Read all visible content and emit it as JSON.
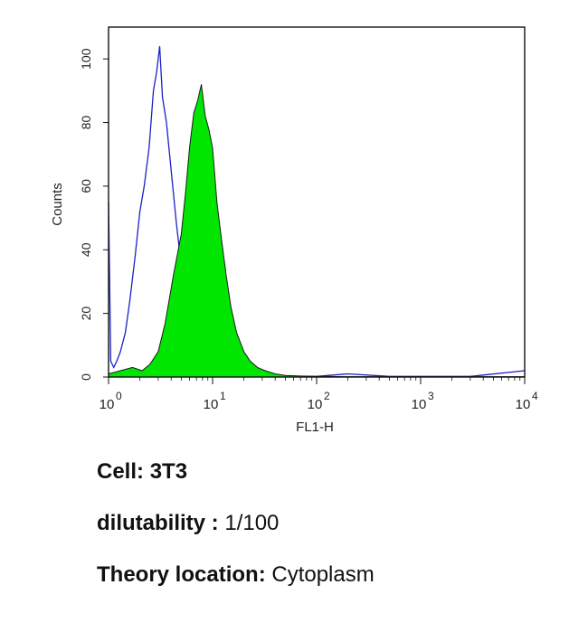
{
  "chart_data": {
    "type": "area",
    "xlabel": "FL1-H",
    "ylabel": "Counts",
    "x_scale": "log",
    "xlim": [
      1,
      10000
    ],
    "ylim": [
      0,
      110
    ],
    "x_ticks": [
      {
        "value": 1,
        "base": "10",
        "exp": "0"
      },
      {
        "value": 10,
        "base": "10",
        "exp": "1"
      },
      {
        "value": 100,
        "base": "10",
        "exp": "2"
      },
      {
        "value": 1000,
        "base": "10",
        "exp": "3"
      },
      {
        "value": 10000,
        "base": "10",
        "exp": "4"
      }
    ],
    "y_ticks": [
      "0",
      "20",
      "40",
      "60",
      "80",
      "100"
    ],
    "series": [
      {
        "style": "outline",
        "color": "#1f1fc8",
        "x": [
          1.0,
          1.05,
          1.12,
          1.2,
          1.3,
          1.45,
          1.6,
          1.8,
          2.0,
          2.2,
          2.45,
          2.7,
          2.9,
          3.1,
          3.3,
          3.6,
          4.0,
          4.5,
          5.0,
          5.6,
          6.3,
          7.0,
          8.0,
          9.5,
          11,
          13,
          16,
          20,
          25,
          32,
          40,
          50,
          70,
          100,
          200,
          500,
          1000,
          3000,
          10000
        ],
        "y": [
          55,
          5,
          3,
          5,
          8,
          14,
          24,
          38,
          52,
          60,
          72,
          90,
          96,
          104,
          88,
          80,
          65,
          48,
          35,
          25,
          18,
          12,
          8,
          5,
          3.5,
          2,
          1.5,
          1,
          0.8,
          0.5,
          0.3,
          0.3,
          0.2,
          0.2,
          1,
          0.2,
          0.2,
          0.2,
          2
        ]
      },
      {
        "style": "filled",
        "color": "#00e600",
        "x": [
          1.0,
          1.3,
          1.7,
          2.1,
          2.5,
          3.0,
          3.5,
          4.2,
          5.0,
          5.5,
          6.0,
          6.6,
          7.2,
          7.8,
          8.5,
          9.2,
          10,
          11,
          12,
          13.5,
          15,
          17,
          20,
          23,
          27,
          32,
          40,
          50,
          70,
          100,
          200,
          1000,
          10000
        ],
        "y": [
          1,
          2,
          3,
          2,
          4,
          8,
          17,
          32,
          45,
          58,
          72,
          83,
          87,
          92,
          82,
          78,
          72,
          55,
          45,
          32,
          22,
          14,
          8,
          5,
          3,
          2,
          1,
          0.5,
          0.3,
          0.2,
          0.1,
          0.1,
          0.1
        ]
      }
    ]
  },
  "captions": {
    "cell_label": "Cell:",
    "cell_value": "3T3",
    "dilution_label": "dilutability :",
    "dilution_value": "1/100",
    "location_label": "Theory location:",
    "location_value": "Cytoplasm"
  }
}
